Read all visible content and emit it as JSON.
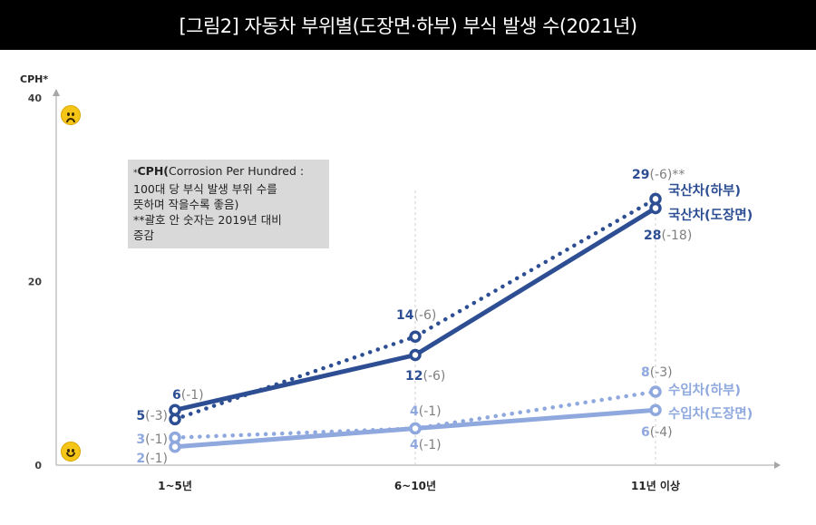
{
  "title": "[그림2] 자동차 부위별(도장면·하부) 부식 발생 수(2021년)",
  "note": {
    "line1_bold": "CPH(",
    "line1_rest": "Corrosion Per Hundred :",
    "line2": "100대 당 부식 발생 부위 수를",
    "line3": "뜻하며 작을수록 좋음)",
    "line4": "**괄호 안 숫자는 2019년 대비",
    "line5": "증감",
    "prefix": "*"
  },
  "icons": {
    "bad": "sad-face-icon",
    "good": "smiley-face-icon"
  },
  "colors": {
    "dark": "#2d4e93",
    "light": "#8fa8de",
    "gray_text": "#7f7f7f",
    "axis": "#a6a6a6"
  },
  "chart_data": {
    "type": "line",
    "ylabel": "CPH*",
    "ylim": [
      0,
      40
    ],
    "yticks": [
      0,
      20,
      40
    ],
    "categories": [
      "1~5년",
      "6~10년",
      "11년 이상"
    ],
    "series": [
      {
        "name": "국산차(하부)",
        "values": [
          5,
          14,
          29
        ],
        "changes": [
          "(-3)",
          "(-6)",
          "(-6)**"
        ],
        "style": "dotted",
        "shade": "dark"
      },
      {
        "name": "국산차(도장면)",
        "values": [
          6,
          12,
          28
        ],
        "changes": [
          "(-1)",
          "(-6)",
          "(-18)"
        ],
        "style": "solid",
        "shade": "dark"
      },
      {
        "name": "수입차(하부)",
        "values": [
          3,
          4,
          8
        ],
        "changes": [
          "(-1)",
          "(-1)",
          "(-3)"
        ],
        "style": "dotted",
        "shade": "light"
      },
      {
        "name": "수입차(도장면)",
        "values": [
          2,
          4,
          6
        ],
        "changes": [
          "(-1)",
          "(-1)",
          "(-4)"
        ],
        "style": "solid",
        "shade": "light"
      }
    ]
  }
}
